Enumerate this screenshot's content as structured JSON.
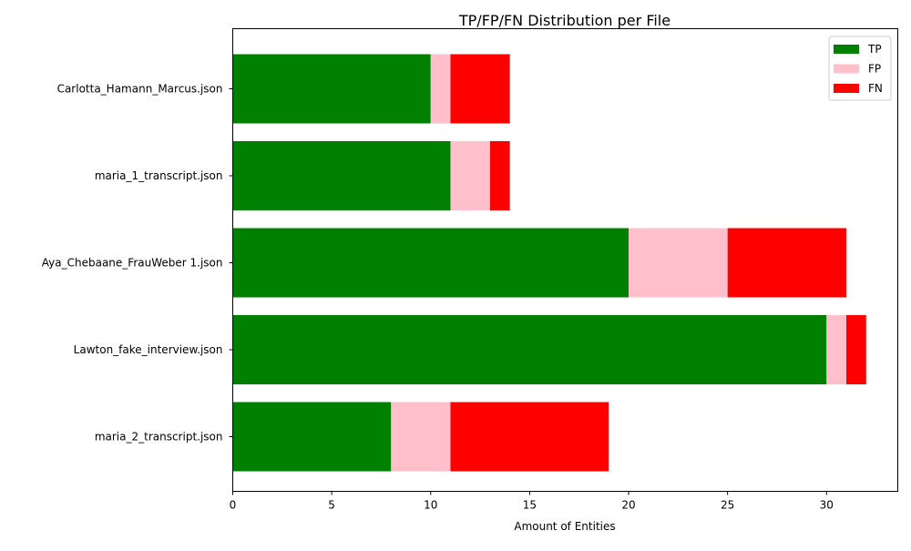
{
  "chart_data": {
    "type": "bar",
    "orientation": "horizontal",
    "stacked": true,
    "title": "TP/FP/FN Distribution per File",
    "xlabel": "Amount of Entities",
    "ylabel": "",
    "xlim": [
      0,
      33.6
    ],
    "xticks": [
      0,
      5,
      10,
      15,
      20,
      25,
      30
    ],
    "categories": [
      "Carlotta_Hamann_Marcus.json",
      "maria_1_transcript.json",
      "Aya_Chebaane_FrauWeber 1.json",
      "Lawton_fake_interview.json",
      "maria_2_transcript.json"
    ],
    "series": [
      {
        "name": "TP",
        "color": "#008000",
        "values": [
          10,
          11,
          20,
          30,
          8
        ]
      },
      {
        "name": "FP",
        "color": "#ffc0cb",
        "values": [
          1,
          2,
          5,
          1,
          3
        ]
      },
      {
        "name": "FN",
        "color": "#ff0000",
        "values": [
          3,
          1,
          6,
          1,
          8
        ]
      }
    ],
    "grid": false,
    "legend_position": "top-right"
  }
}
